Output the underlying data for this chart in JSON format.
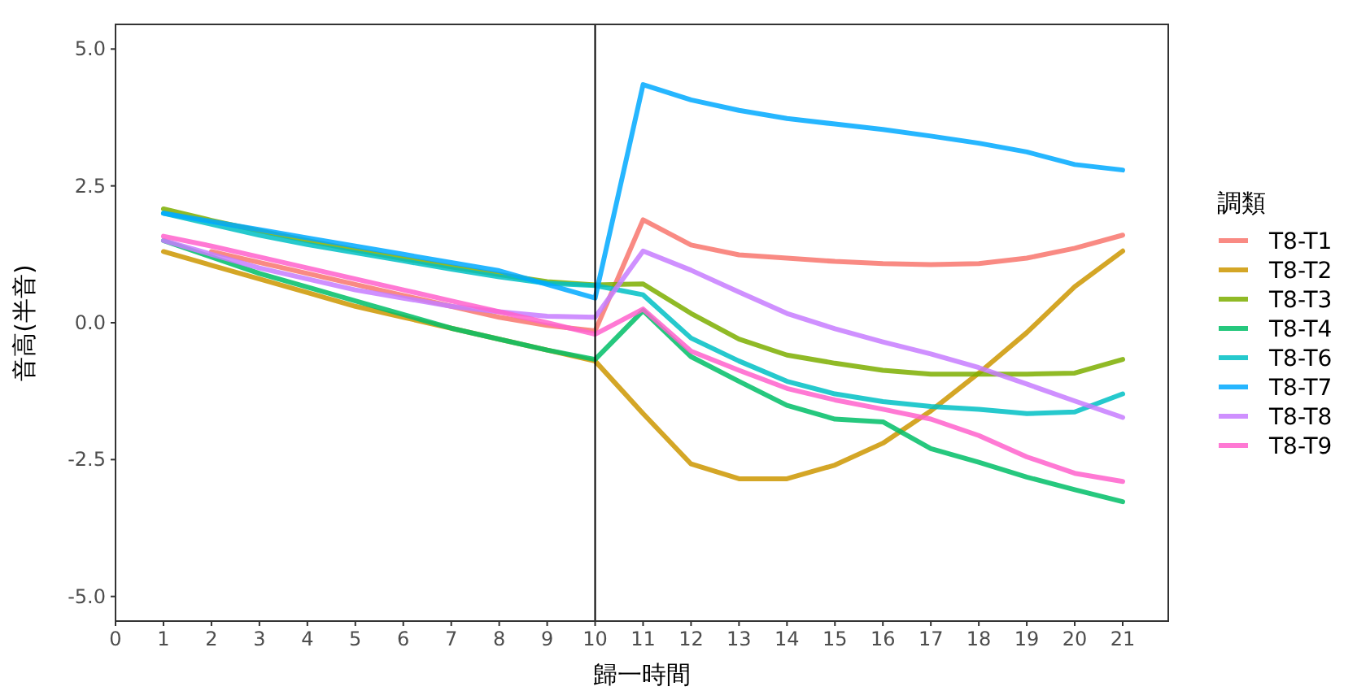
{
  "chart_data": {
    "type": "line",
    "xlabel": "歸一時間",
    "ylabel": "音高(半音)",
    "legend_title": "調類",
    "legend": "right",
    "grid": false,
    "x": [
      1,
      2,
      3,
      4,
      5,
      6,
      7,
      8,
      9,
      10,
      11,
      12,
      13,
      14,
      15,
      16,
      17,
      18,
      19,
      20,
      21
    ],
    "xlim": [
      0,
      21.95
    ],
    "xticks": [
      0,
      1,
      2,
      3,
      4,
      5,
      6,
      7,
      8,
      9,
      10,
      11,
      12,
      13,
      14,
      15,
      16,
      17,
      18,
      19,
      20,
      21
    ],
    "ylim": [
      -5.45,
      5.45
    ],
    "yticks": [
      {
        "value": -5,
        "label": "-5.0"
      },
      {
        "value": -2.5,
        "label": "-2.5"
      },
      {
        "value": 0,
        "label": "0.0"
      },
      {
        "value": 2.5,
        "label": "2.5"
      },
      {
        "value": 5,
        "label": "5.0"
      }
    ],
    "ref_lines": [
      {
        "axis": "x",
        "value": 10,
        "color": "#000000"
      }
    ],
    "series": [
      {
        "name": "T8-T1",
        "color": "#F8766D",
        "values": [
          null,
          1.3,
          1.1,
          0.9,
          0.7,
          0.5,
          0.3,
          0.1,
          -0.05,
          -0.15,
          1.88,
          1.42,
          1.24,
          1.18,
          1.12,
          1.08,
          1.06,
          1.08,
          1.18,
          1.36,
          1.6
        ]
      },
      {
        "name": "T8-T2",
        "color": "#CD9600",
        "values": [
          1.3,
          1.05,
          0.8,
          0.55,
          0.3,
          0.1,
          -0.1,
          -0.3,
          -0.5,
          -0.7,
          -1.66,
          -2.58,
          -2.85,
          -2.85,
          -2.6,
          -2.2,
          -1.61,
          -0.92,
          -0.18,
          0.66,
          1.31
        ]
      },
      {
        "name": "T8-T3",
        "color": "#7CAE00",
        "values": [
          2.08,
          1.87,
          1.68,
          1.5,
          1.33,
          1.17,
          1.02,
          0.88,
          0.75,
          0.69,
          0.71,
          0.17,
          -0.3,
          -0.59,
          -0.74,
          -0.87,
          -0.94,
          -0.94,
          -0.94,
          -0.92,
          -0.67
        ]
      },
      {
        "name": "T8-T4",
        "color": "#00BE67",
        "values": [
          1.5,
          1.2,
          0.9,
          0.65,
          0.4,
          0.15,
          -0.1,
          -0.3,
          -0.5,
          -0.67,
          0.22,
          -0.62,
          -1.07,
          -1.51,
          -1.76,
          -1.81,
          -2.3,
          -2.55,
          -2.82,
          -3.05,
          -3.27
        ]
      },
      {
        "name": "T8-T6",
        "color": "#00BFC4",
        "values": [
          2.0,
          1.8,
          1.6,
          1.43,
          1.28,
          1.13,
          0.98,
          0.84,
          0.72,
          0.68,
          0.51,
          -0.28,
          -0.7,
          -1.07,
          -1.3,
          -1.44,
          -1.53,
          -1.58,
          -1.66,
          -1.63,
          -1.3
        ]
      },
      {
        "name": "T8-T7",
        "color": "#00A9FF",
        "values": [
          2.0,
          1.85,
          1.7,
          1.55,
          1.4,
          1.25,
          1.1,
          0.95,
          0.7,
          0.45,
          4.35,
          4.07,
          3.88,
          3.73,
          3.63,
          3.53,
          3.41,
          3.28,
          3.12,
          2.89,
          2.79
        ]
      },
      {
        "name": "T8-T8",
        "color": "#C77CFF",
        "values": [
          1.5,
          1.25,
          1.0,
          0.8,
          0.6,
          0.45,
          0.3,
          0.2,
          0.12,
          0.1,
          1.31,
          0.96,
          0.56,
          0.17,
          -0.11,
          -0.35,
          -0.57,
          -0.82,
          -1.12,
          -1.43,
          -1.73
        ]
      },
      {
        "name": "T8-T9",
        "color": "#FF61CC",
        "values": [
          1.58,
          1.4,
          1.2,
          1.0,
          0.8,
          0.6,
          0.4,
          0.2,
          0.0,
          -0.21,
          0.25,
          -0.52,
          -0.87,
          -1.2,
          -1.41,
          -1.58,
          -1.76,
          -2.06,
          -2.45,
          -2.75,
          -2.9
        ]
      }
    ]
  }
}
